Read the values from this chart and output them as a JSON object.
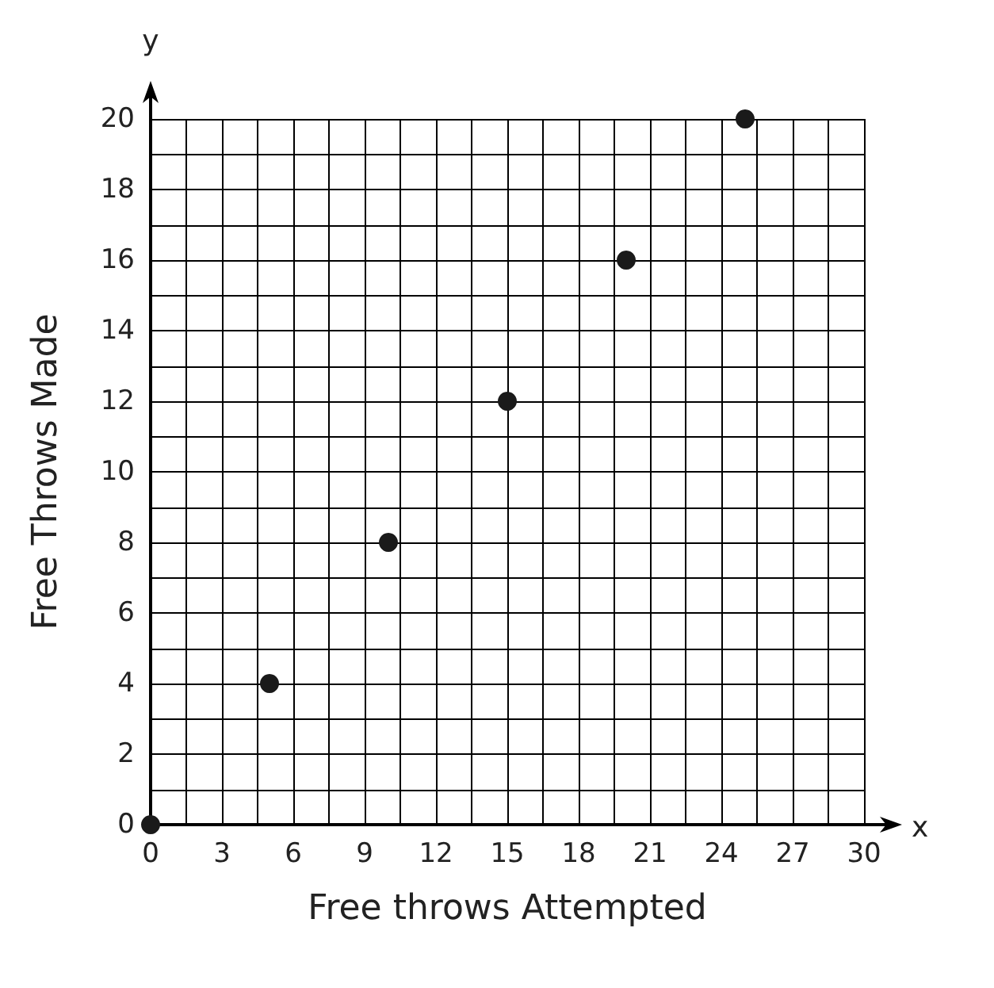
{
  "chart_data": {
    "type": "scatter",
    "xlabel": "Free throws Attempted",
    "ylabel": "Free Throws Made",
    "annotations": [
      "x",
      "y"
    ],
    "x": [
      0,
      5,
      10,
      15,
      20,
      25
    ],
    "series": [
      {
        "color": "#1a1a1a",
        "values": [
          0,
          4,
          8,
          12,
          16,
          20
        ]
      }
    ],
    "xlim": [
      0,
      30
    ],
    "ylim": [
      0,
      20
    ],
    "xticks": [
      0,
      {
        "value": 1.5,
        "label": null
      },
      3,
      {
        "value": 4.5,
        "label": null
      },
      6,
      {
        "value": 7.5,
        "label": null
      },
      9,
      {
        "value": 10.5,
        "label": null
      },
      12,
      {
        "value": 13.5,
        "label": null
      },
      15,
      {
        "value": 16.5,
        "label": null
      },
      18,
      {
        "value": 19.5,
        "label": null
      },
      21,
      {
        "value": 22.5,
        "label": null
      },
      24,
      {
        "value": 25.5,
        "label": null
      },
      27,
      {
        "value": 28.5,
        "label": null
      },
      30
    ],
    "yticks": [
      0,
      {
        "value": 1,
        "label": null
      },
      2,
      {
        "value": 3,
        "label": null
      },
      4,
      {
        "value": 5,
        "label": null
      },
      6,
      {
        "value": 7,
        "label": null
      },
      8,
      {
        "value": 9,
        "label": null
      },
      10,
      {
        "value": 11,
        "label": null
      },
      12,
      {
        "value": 13,
        "label": null
      },
      14,
      {
        "value": 15,
        "label": null
      },
      16,
      {
        "value": 17,
        "label": null
      },
      18,
      {
        "value": 19,
        "label": null
      },
      20
    ],
    "grid": true,
    "marker": "circle"
  }
}
